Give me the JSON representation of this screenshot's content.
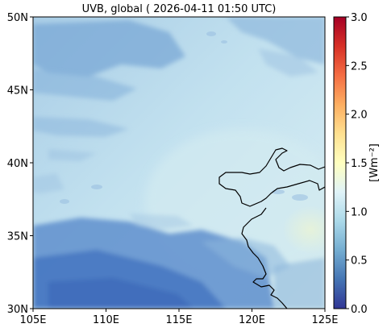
{
  "title": "UVB, global ( 2026-04-11 01:50 UTC)",
  "map": {
    "lon_range": [
      105,
      125
    ],
    "lat_range": [
      30,
      50
    ],
    "x_ticks": [
      {
        "value": 105,
        "label": "105E"
      },
      {
        "value": 110,
        "label": "110E"
      },
      {
        "value": 115,
        "label": "115E"
      },
      {
        "value": 120,
        "label": "120E"
      },
      {
        "value": 125,
        "label": "125E"
      }
    ],
    "y_ticks": [
      {
        "value": 30,
        "label": "30N"
      },
      {
        "value": 35,
        "label": "35N"
      },
      {
        "value": 40,
        "label": "40N"
      },
      {
        "value": 45,
        "label": "45N"
      },
      {
        "value": 50,
        "label": "50N"
      }
    ],
    "grid": false,
    "coastline_color": "#000000"
  },
  "colorbar": {
    "label": "[Wm⁻²]",
    "range": [
      0.0,
      3.0
    ],
    "ticks": [
      {
        "value": 0.0,
        "label": "0.0"
      },
      {
        "value": 0.5,
        "label": "0.5"
      },
      {
        "value": 1.0,
        "label": "1.0"
      },
      {
        "value": 1.5,
        "label": "1.5"
      },
      {
        "value": 2.0,
        "label": "2.0"
      },
      {
        "value": 2.5,
        "label": "2.5"
      },
      {
        "value": 3.0,
        "label": "3.0"
      }
    ],
    "colormap": [
      "#313695",
      "#4575b4",
      "#74add1",
      "#abd9e9",
      "#e0f3f8",
      "#ffffbf",
      "#fee090",
      "#fdae61",
      "#f46d43",
      "#d73027",
      "#a50026"
    ]
  }
}
